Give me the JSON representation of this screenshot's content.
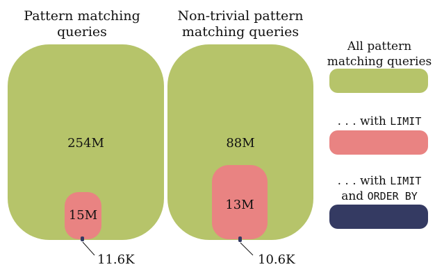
{
  "panels": [
    {
      "title_line1": "Pattern matching",
      "title_line2": "queries",
      "outer_value": "254M",
      "inner_value": "15M",
      "tiny_value": "11.6K"
    },
    {
      "title_line1": "Non-trivial pattern",
      "title_line2": "matching queries",
      "outer_value": "88M",
      "inner_value": "13M",
      "tiny_value": "10.6K"
    }
  ],
  "legend": {
    "all_line1": "All pattern",
    "all_line2": "matching queries",
    "limit_prefix": ". . . with ",
    "limit_kw": "LIMIT",
    "orderby_prefix": ". . . with ",
    "orderby_kw1": "LIMIT",
    "orderby_and": "and ",
    "orderby_kw2": "ORDER BY"
  },
  "colors": {
    "all": "#b6c46a",
    "limit": "#e98382",
    "order_by": "#343a62"
  }
}
